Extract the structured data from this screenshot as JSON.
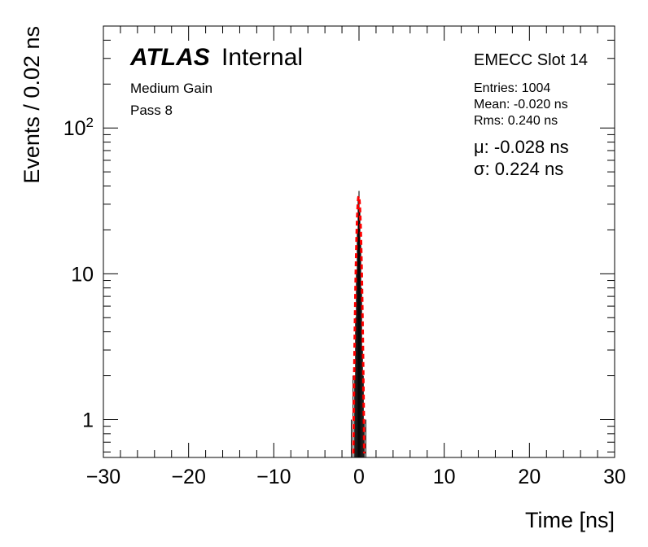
{
  "chart_data": {
    "type": "histogram",
    "title": "",
    "xlabel": "Time [ns]",
    "ylabel": "Events / 0.02 ns",
    "xlim": [
      -30,
      30
    ],
    "ylim": [
      0.55,
      500
    ],
    "y_scale": "log",
    "x_ticks": [
      -30,
      -20,
      -10,
      0,
      10,
      20,
      30
    ],
    "x_tick_labels": [
      "−30",
      "−20",
      "−10",
      "0",
      "10",
      "20",
      "30"
    ],
    "y_ticks": [
      1,
      10,
      100
    ],
    "y_tick_labels": [
      "1",
      "10",
      "10^2"
    ],
    "histogram": {
      "bins_x": [
        -0.9,
        -0.8,
        -0.7,
        -0.6,
        -0.5,
        -0.4,
        -0.3,
        -0.2,
        -0.1,
        0.0,
        0.1,
        0.2,
        0.3,
        0.4,
        0.5,
        0.6,
        0.7,
        0.8
      ],
      "counts": [
        1,
        0,
        2,
        0,
        2,
        5,
        10,
        20,
        33,
        37,
        27,
        16,
        8,
        3,
        2,
        1,
        0,
        1
      ],
      "color": "#000000"
    },
    "fit": {
      "type": "gaussian",
      "mu": -0.028,
      "sigma": 0.224,
      "peak": 34,
      "color": "#ff0000"
    },
    "annotations": {
      "atlas": "ATLAS",
      "internal": "Internal",
      "gain": "Medium Gain",
      "pass": "Pass 8",
      "slot": "EMECC Slot 14",
      "entries": "Entries: 1004",
      "mean": "Mean: -0.020 ns",
      "rms": "Rms: 0.240 ns",
      "mu": "μ: -0.028 ns",
      "sigma": "σ: 0.224 ns"
    }
  }
}
